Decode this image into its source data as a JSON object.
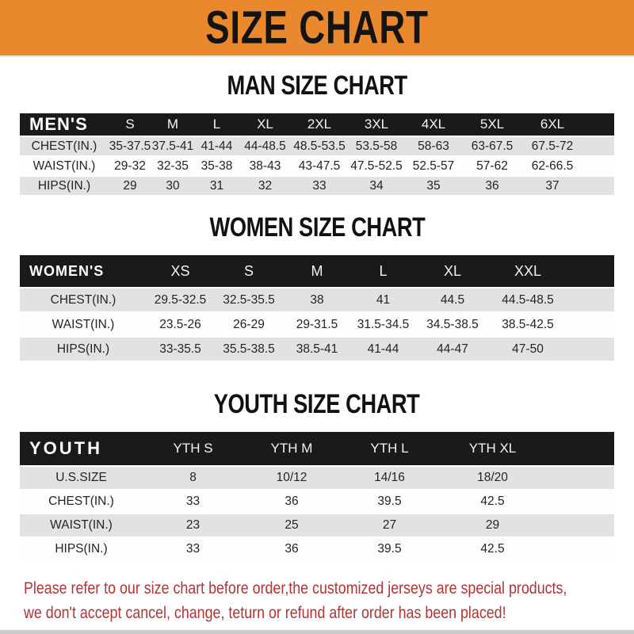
{
  "banner": {
    "title": "SIZE CHART"
  },
  "appearance": {
    "banner_bg": "#E9882D",
    "header_bg": "#1A1A1A",
    "stripe_gray": "#E2E2E2",
    "footer_red": "#B23434"
  },
  "men_section": {
    "heading": "MAN SIZE CHART",
    "table": {
      "label": "MEN'S",
      "columns": [
        "S",
        "M",
        "L",
        "XL",
        "2XL",
        "3XL",
        "4XL",
        "5XL",
        "6XL"
      ],
      "rows": [
        {
          "label": "CHEST(IN.)",
          "values": [
            "35-37.5",
            "37.5-41",
            "41-44",
            "44-48.5",
            "48.5-53.5",
            "53.5-58",
            "58-63",
            "63-67.5",
            "67.5-72"
          ]
        },
        {
          "label": "WAIST(IN.)",
          "values": [
            "29-32",
            "32-35",
            "35-38",
            "38-43",
            "43-47.5",
            "47.5-52.5",
            "52.5-57",
            "57-62",
            "62-66.5"
          ]
        },
        {
          "label": "HIPS(IN.)",
          "values": [
            "29",
            "30",
            "31",
            "32",
            "33",
            "34",
            "35",
            "36",
            "37"
          ]
        }
      ]
    }
  },
  "women_section": {
    "heading": "WOMEN SIZE CHART",
    "table": {
      "label": "WOMEN'S",
      "columns": [
        "XS",
        "S",
        "M",
        "L",
        "XL",
        "XXL"
      ],
      "rows": [
        {
          "label": "CHEST(IN.)",
          "values": [
            "29.5-32.5",
            "32.5-35.5",
            "38",
            "41",
            "44.5",
            "44.5-48.5"
          ]
        },
        {
          "label": "WAIST(IN.)",
          "values": [
            "23.5-26",
            "26-29",
            "29-31.5",
            "31.5-34.5",
            "34.5-38.5",
            "38.5-42.5"
          ]
        },
        {
          "label": "HIPS(IN.)",
          "values": [
            "33-35.5",
            "35.5-38.5",
            "38.5-41",
            "41-44",
            "44-47",
            "47-50"
          ]
        }
      ]
    }
  },
  "youth_section": {
    "heading": "YOUTH SIZE CHART",
    "table": {
      "label": "YOUTH",
      "columns": [
        "YTH S",
        "YTH M",
        "YTH L",
        "YTH XL"
      ],
      "rows": [
        {
          "label": "U.S.SIZE",
          "values": [
            "8",
            "10/12",
            "14/16",
            "18/20"
          ]
        },
        {
          "label": "CHEST(IN.)",
          "values": [
            "33",
            "36",
            "39.5",
            "42.5"
          ]
        },
        {
          "label": "WAIST(IN.)",
          "values": [
            "23",
            "25",
            "27",
            "29"
          ]
        },
        {
          "label": "HIPS(IN.)",
          "values": [
            "33",
            "36",
            "39.5",
            "42.5"
          ]
        }
      ]
    }
  },
  "footer": {
    "line1": "Please refer to our size chart before order,the customized jerseys are special products,",
    "line2": "we don't accept cancel, change, teturn or refund after order has been placed!"
  }
}
